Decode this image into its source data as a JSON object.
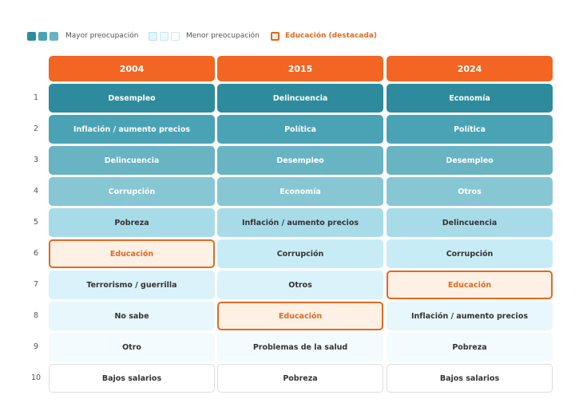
{
  "legend": {
    "major": "Mayor preocupación",
    "minor": "Menor preocupación",
    "highlight": "Educación (destacada)"
  },
  "header": {
    "columns": [
      "2004",
      "2015",
      "2024"
    ]
  },
  "table": {
    "rows": [
      {
        "rank": 1,
        "cells": [
          "Desempleo",
          "Delincuencia",
          "Economía"
        ]
      },
      {
        "rank": 2,
        "cells": [
          "Inflación / aumento precios",
          "Política",
          "Política"
        ]
      },
      {
        "rank": 3,
        "cells": [
          "Delincuencia",
          "Desempleo",
          "Desempleo"
        ]
      },
      {
        "rank": 4,
        "cells": [
          "Corrupción",
          "Economía",
          "Otros"
        ]
      },
      {
        "rank": 5,
        "cells": [
          "Pobreza",
          "Inflación / aumento precios",
          "Delincuencia"
        ]
      },
      {
        "rank": 6,
        "cells": [
          "Educación",
          "Corrupción",
          "Corrupción"
        ]
      },
      {
        "rank": 7,
        "cells": [
          "Terrorismo / guerrilla",
          "Otros",
          "Educación"
        ]
      },
      {
        "rank": 8,
        "cells": [
          "No sabe",
          "Educación",
          "Inflación / aumento precios"
        ]
      },
      {
        "rank": 9,
        "cells": [
          "Otro",
          "Problemas de la salud",
          "Pobreza"
        ]
      },
      {
        "rank": 10,
        "cells": [
          "Bajos salarios",
          "Pobreza",
          "Bajos salarios"
        ]
      }
    ]
  }
}
